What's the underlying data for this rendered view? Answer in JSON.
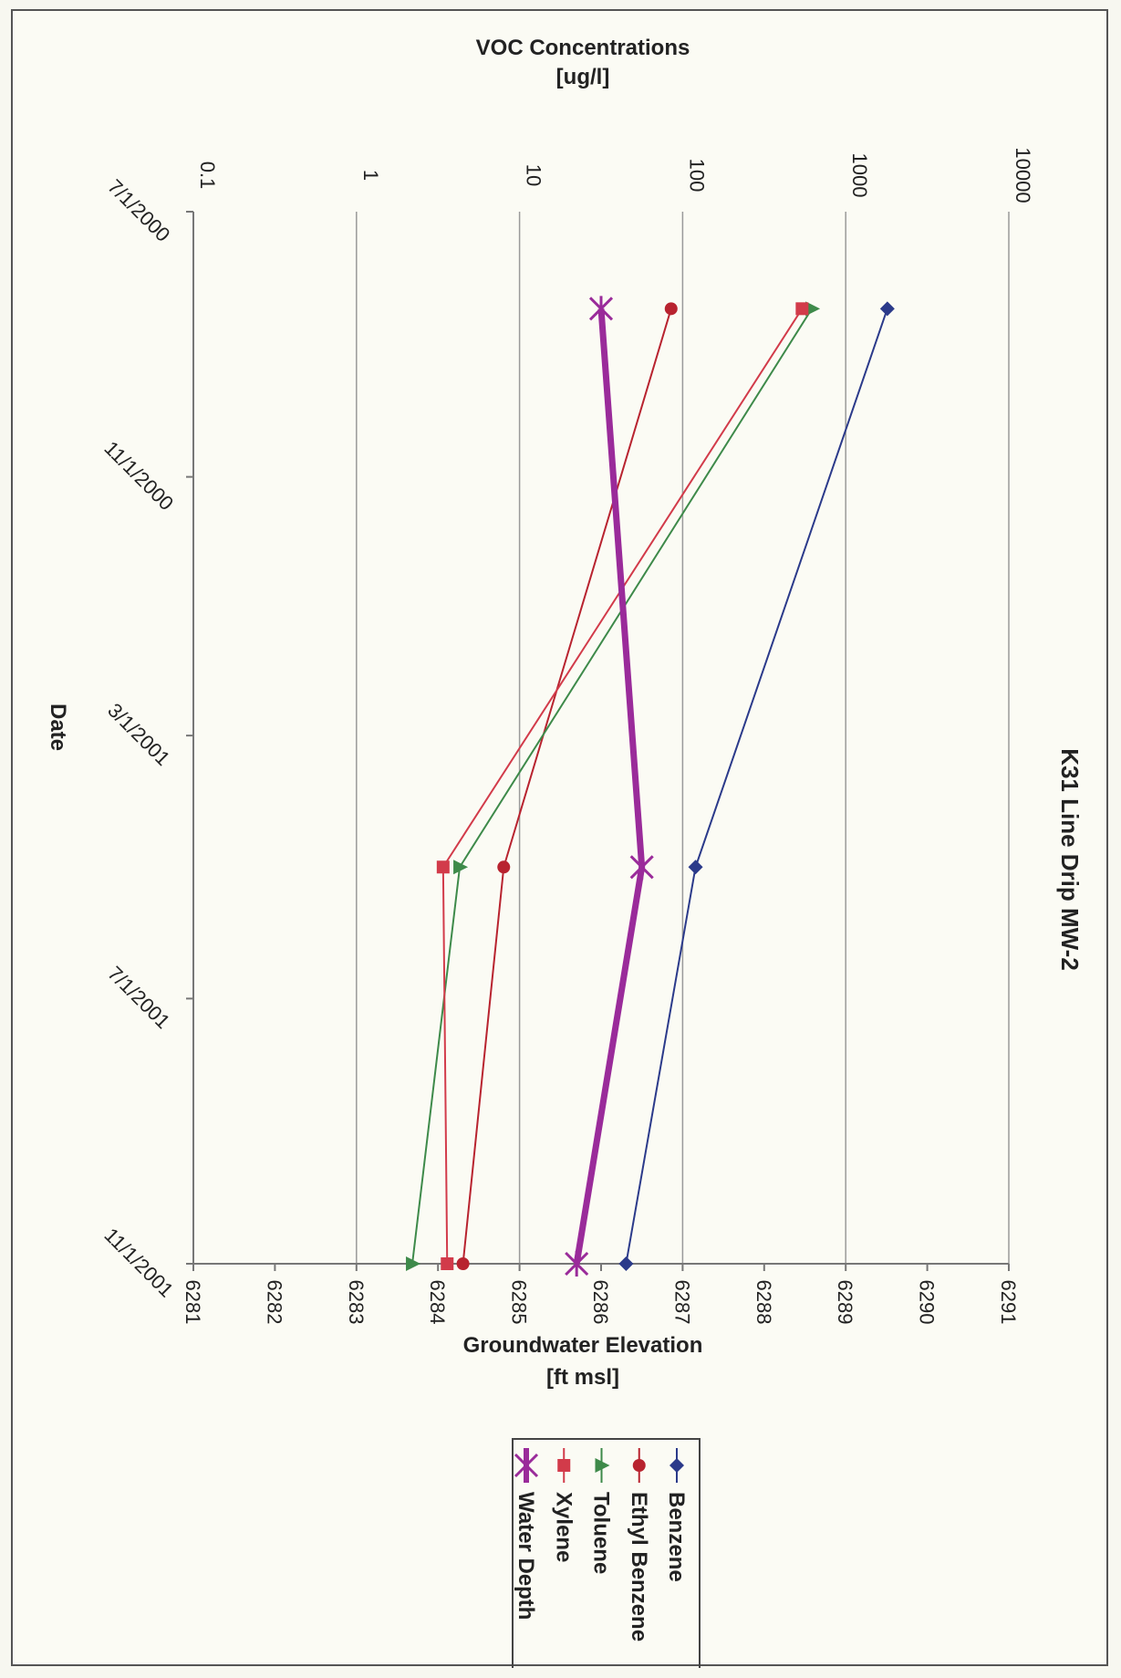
{
  "chart_data": {
    "type": "line",
    "title": "K31 Line Drip MW-2",
    "orientation": "rotated-90-clockwise",
    "x_axis": {
      "label": "Date",
      "tick_labels": [
        "7/1/2000",
        "11/1/2000",
        "3/1/2001",
        "7/1/2001",
        "11/1/2001"
      ],
      "range": [
        "7/1/2000",
        "11/1/2001"
      ]
    },
    "y_axis_left": {
      "label": "VOC Concentrations",
      "unit_label": "[ug/l]",
      "scale": "log",
      "range": [
        0.1,
        10000
      ],
      "tick_labels": [
        "0.1",
        "1",
        "10",
        "100",
        "1000",
        "10000"
      ]
    },
    "y_axis_right": {
      "label": "Groundwater Elevation",
      "unit_label": "[ft msl]",
      "scale": "linear",
      "range": [
        6281,
        6291
      ],
      "tick_labels": [
        "6281",
        "6282",
        "6283",
        "6284",
        "6285",
        "6286",
        "6287",
        "6288",
        "6289",
        "6290",
        "6291"
      ]
    },
    "x": [
      "8/15/2000",
      "5/1/2001",
      "11/1/2001"
    ],
    "series": [
      {
        "name": "Benzene",
        "axis": "left",
        "color": "#2b3a8a",
        "marker": "diamond",
        "values": [
          1800,
          120,
          45
        ]
      },
      {
        "name": "Ethyl Benzene",
        "axis": "left",
        "color": "#b8232f",
        "marker": "circle",
        "values": [
          85,
          8,
          4.5
        ]
      },
      {
        "name": "Toluene",
        "axis": "left",
        "color": "#3e8a4a",
        "marker": "triangle",
        "values": [
          620,
          4.3,
          2.2
        ]
      },
      {
        "name": "Xylene",
        "axis": "left",
        "color": "#d23b4a",
        "marker": "square",
        "values": [
          540,
          3.4,
          3.6
        ]
      },
      {
        "name": "Water Depth",
        "axis": "right",
        "color": "#9a2b9a",
        "marker": "star",
        "values": [
          6286,
          6286.5,
          6285.7
        ]
      }
    ],
    "grid": true,
    "legend_placement": "bottom"
  }
}
